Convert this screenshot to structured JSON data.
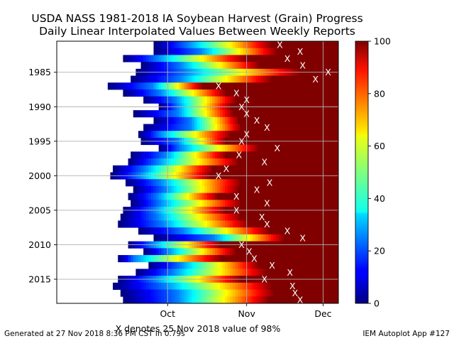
{
  "chart_data": {
    "type": "heatmap",
    "title": "USDA NASS 1981-2018 IA Soybean Harvest (Grain) Progress",
    "subtitle": "Daily Linear Interpolated Values Between Weekly Reports",
    "xlabel": "X denotes 25 Nov 2018 value of 98%",
    "ylabel": "",
    "x_tick_labels": [
      "Oct",
      "Nov",
      "Dec"
    ],
    "y_tick_labels": [
      "1985",
      "1990",
      "1995",
      "2000",
      "2005",
      "2010",
      "2015"
    ],
    "y_range": [
      1981,
      2018
    ],
    "y_inverted": true,
    "colorbar": {
      "min": 0,
      "max": 100,
      "ticks": [
        "0",
        "20",
        "40",
        "60",
        "80",
        "100"
      ],
      "colormap": "jet"
    },
    "grid": true,
    "marker": "X",
    "years": [
      {
        "year": 1981,
        "start": "09-26",
        "d25": "10-09",
        "end": "11-11",
        "x": "11-14"
      },
      {
        "year": 1982,
        "start": "09-26",
        "d25": "10-14",
        "end": "11-13",
        "x": "11-22"
      },
      {
        "year": 1983,
        "start": "09-14",
        "d25": "09-27",
        "end": "11-01",
        "x": "11-17"
      },
      {
        "year": 1984,
        "start": "09-21",
        "d25": "10-06",
        "end": "11-06",
        "x": "11-23"
      },
      {
        "year": 1985,
        "start": "09-19",
        "d25": "10-08",
        "end": "11-22",
        "x": "12-03"
      },
      {
        "year": 1986,
        "start": "09-17",
        "d25": "10-06",
        "end": "11-11",
        "x": "11-28"
      },
      {
        "year": 1987,
        "start": "09-08",
        "d25": "09-25",
        "end": "10-15",
        "x": "10-21"
      },
      {
        "year": 1988,
        "start": "09-14",
        "d25": "09-28",
        "end": "10-24",
        "x": "10-28"
      },
      {
        "year": 1989,
        "start": "09-22",
        "d25": "10-04",
        "end": "10-28",
        "x": "11-01"
      },
      {
        "year": 1990,
        "start": "09-28",
        "d25": "10-05",
        "end": "10-26",
        "x": "10-30"
      },
      {
        "year": 1991,
        "start": "09-18",
        "d25": "10-05",
        "end": "10-27",
        "x": "11-01"
      },
      {
        "year": 1992,
        "start": "09-26",
        "d25": "10-10",
        "end": "10-29",
        "x": "11-05"
      },
      {
        "year": 1993,
        "start": "09-22",
        "d25": "10-10",
        "end": "10-30",
        "x": "11-09"
      },
      {
        "year": 1994,
        "start": "09-20",
        "d25": "09-28",
        "end": "10-26",
        "x": "11-01"
      },
      {
        "year": 1995,
        "start": "09-21",
        "d25": "10-05",
        "end": "10-24",
        "x": "10-30"
      },
      {
        "year": 1996,
        "start": "09-28",
        "d25": "10-06",
        "end": "11-06",
        "x": "11-13"
      },
      {
        "year": 1997,
        "start": "09-17",
        "d25": "09-30",
        "end": "10-24",
        "x": "10-29"
      },
      {
        "year": 1998,
        "start": "09-16",
        "d25": "09-27",
        "end": "10-29",
        "x": "11-08"
      },
      {
        "year": 1999,
        "start": "09-10",
        "d25": "09-22",
        "end": "10-19",
        "x": "10-24"
      },
      {
        "year": 2000,
        "start": "09-09",
        "d25": "09-20",
        "end": "10-18",
        "x": "10-21"
      },
      {
        "year": 2001,
        "start": "09-15",
        "d25": "09-28",
        "end": "10-30",
        "x": "11-10"
      },
      {
        "year": 2002,
        "start": "09-18",
        "d25": "09-30",
        "end": "10-29",
        "x": "11-05"
      },
      {
        "year": 2003,
        "start": "09-16",
        "d25": "09-27",
        "end": "10-21",
        "x": "10-28"
      },
      {
        "year": 2004,
        "start": "09-17",
        "d25": "09-28",
        "end": "10-30",
        "x": "11-09"
      },
      {
        "year": 2005,
        "start": "09-14",
        "d25": "09-26",
        "end": "10-24",
        "x": "10-28"
      },
      {
        "year": 2006,
        "start": "09-13",
        "d25": "09-27",
        "end": "10-30",
        "x": "11-07"
      },
      {
        "year": 2007,
        "start": "09-12",
        "d25": "09-29",
        "end": "11-02",
        "x": "11-09"
      },
      {
        "year": 2008,
        "start": "09-20",
        "d25": "10-07",
        "end": "11-10",
        "x": "11-17"
      },
      {
        "year": 2009,
        "start": "09-26",
        "d25": "10-19",
        "end": "11-16",
        "x": "11-23"
      },
      {
        "year": 2010,
        "start": "09-16",
        "d25": "09-25",
        "end": "10-22",
        "x": "10-30"
      },
      {
        "year": 2011,
        "start": "09-22",
        "d25": "10-01",
        "end": "10-28",
        "x": "11-02"
      },
      {
        "year": 2012,
        "start": "09-12",
        "d25": "09-18",
        "end": "10-22",
        "x": "11-04"
      },
      {
        "year": 2013,
        "start": "09-24",
        "d25": "10-06",
        "end": "11-06",
        "x": "11-11"
      },
      {
        "year": 2014,
        "start": "09-19",
        "d25": "10-03",
        "end": "11-09",
        "x": "11-18"
      },
      {
        "year": 2015,
        "start": "09-12",
        "d25": "09-26",
        "end": "10-30",
        "x": "11-08"
      },
      {
        "year": 2016,
        "start": "09-10",
        "d25": "09-30",
        "end": "11-11",
        "x": "11-19"
      },
      {
        "year": 2017,
        "start": "09-13",
        "d25": "10-05",
        "end": "11-12",
        "x": "11-20"
      },
      {
        "year": 2018,
        "start": "09-14",
        "d25": "10-05",
        "end": "11-10",
        "x": "11-22"
      }
    ]
  },
  "footer": {
    "generated": "Generated at 27 Nov 2018 8:36 PM CST in 0.79s",
    "app": "IEM Autoplot App #127"
  }
}
